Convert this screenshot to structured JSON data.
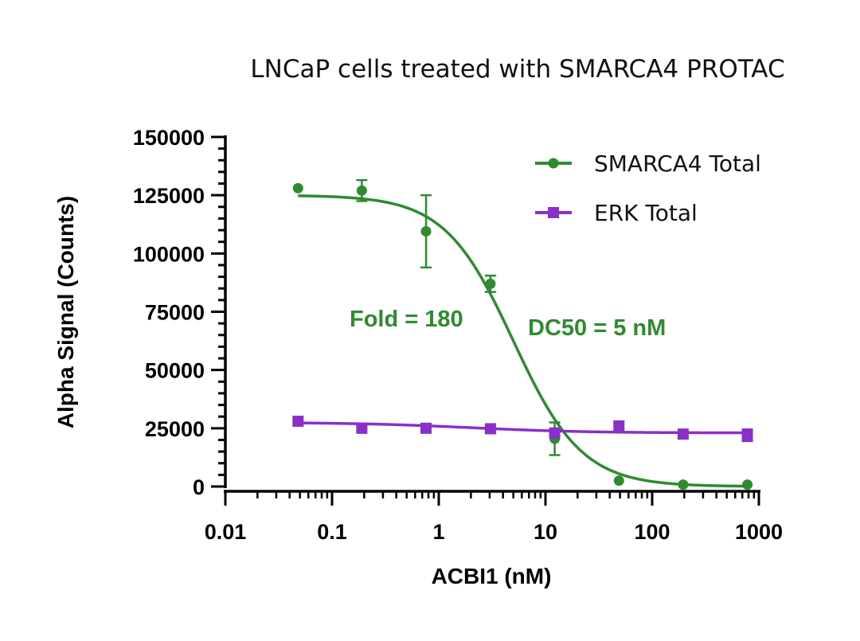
{
  "chart_data": {
    "type": "scatter",
    "title": "LNCaP cells treated with SMARCA4 PROTAC",
    "xlabel": "ACBI1 (nM)",
    "ylabel": "Alpha Signal (Counts)",
    "xscale": "log",
    "xlim": [
      0.01,
      1000
    ],
    "ylim": [
      0,
      150000
    ],
    "x_ticks": [
      0.01,
      0.1,
      1,
      10,
      100,
      1000
    ],
    "x_tick_labels": [
      "0.01",
      "0.1",
      "1",
      "10",
      "100",
      "1000"
    ],
    "y_ticks": [
      0,
      25000,
      50000,
      75000,
      100000,
      125000,
      150000
    ],
    "y_tick_labels": [
      "0",
      "25000",
      "50000",
      "75000",
      "100000",
      "125000",
      "150000"
    ],
    "grid": false,
    "legend_position": "top-right",
    "series": [
      {
        "name": "SMARCA4 Total",
        "color": "#2e8b2e",
        "marker": "circle",
        "x": [
          0.048,
          0.19,
          0.76,
          3.05,
          12.2,
          48.8,
          195,
          780
        ],
        "y": [
          128000,
          127000,
          109500,
          87000,
          20500,
          2500,
          800,
          800
        ],
        "error": [
          0,
          4500,
          15500,
          3500,
          7000,
          0,
          0,
          0
        ],
        "fit": {
          "model": "4PL",
          "top": 125000,
          "bottom": 0,
          "ic50": 5,
          "hill": 1.35
        }
      },
      {
        "name": "ERK Total",
        "color": "#8b2fc9",
        "marker": "square",
        "x": [
          0.048,
          0.19,
          0.76,
          3.05,
          12.2,
          48.8,
          195,
          780
        ],
        "y": [
          28000,
          25000,
          25000,
          24800,
          23000,
          26000,
          22500,
          22000
        ],
        "error": [
          0,
          0,
          0,
          0,
          0,
          0,
          0,
          2500
        ],
        "fit": {
          "model": "4PL",
          "top": 27500,
          "bottom": 23000,
          "ic50": 2,
          "hill": 0.8
        }
      }
    ],
    "annotations": [
      {
        "text": "Fold = 180",
        "color": "#2e8b2e"
      },
      {
        "text": "DC50 = 5 nM",
        "color": "#2e8b2e"
      }
    ]
  }
}
